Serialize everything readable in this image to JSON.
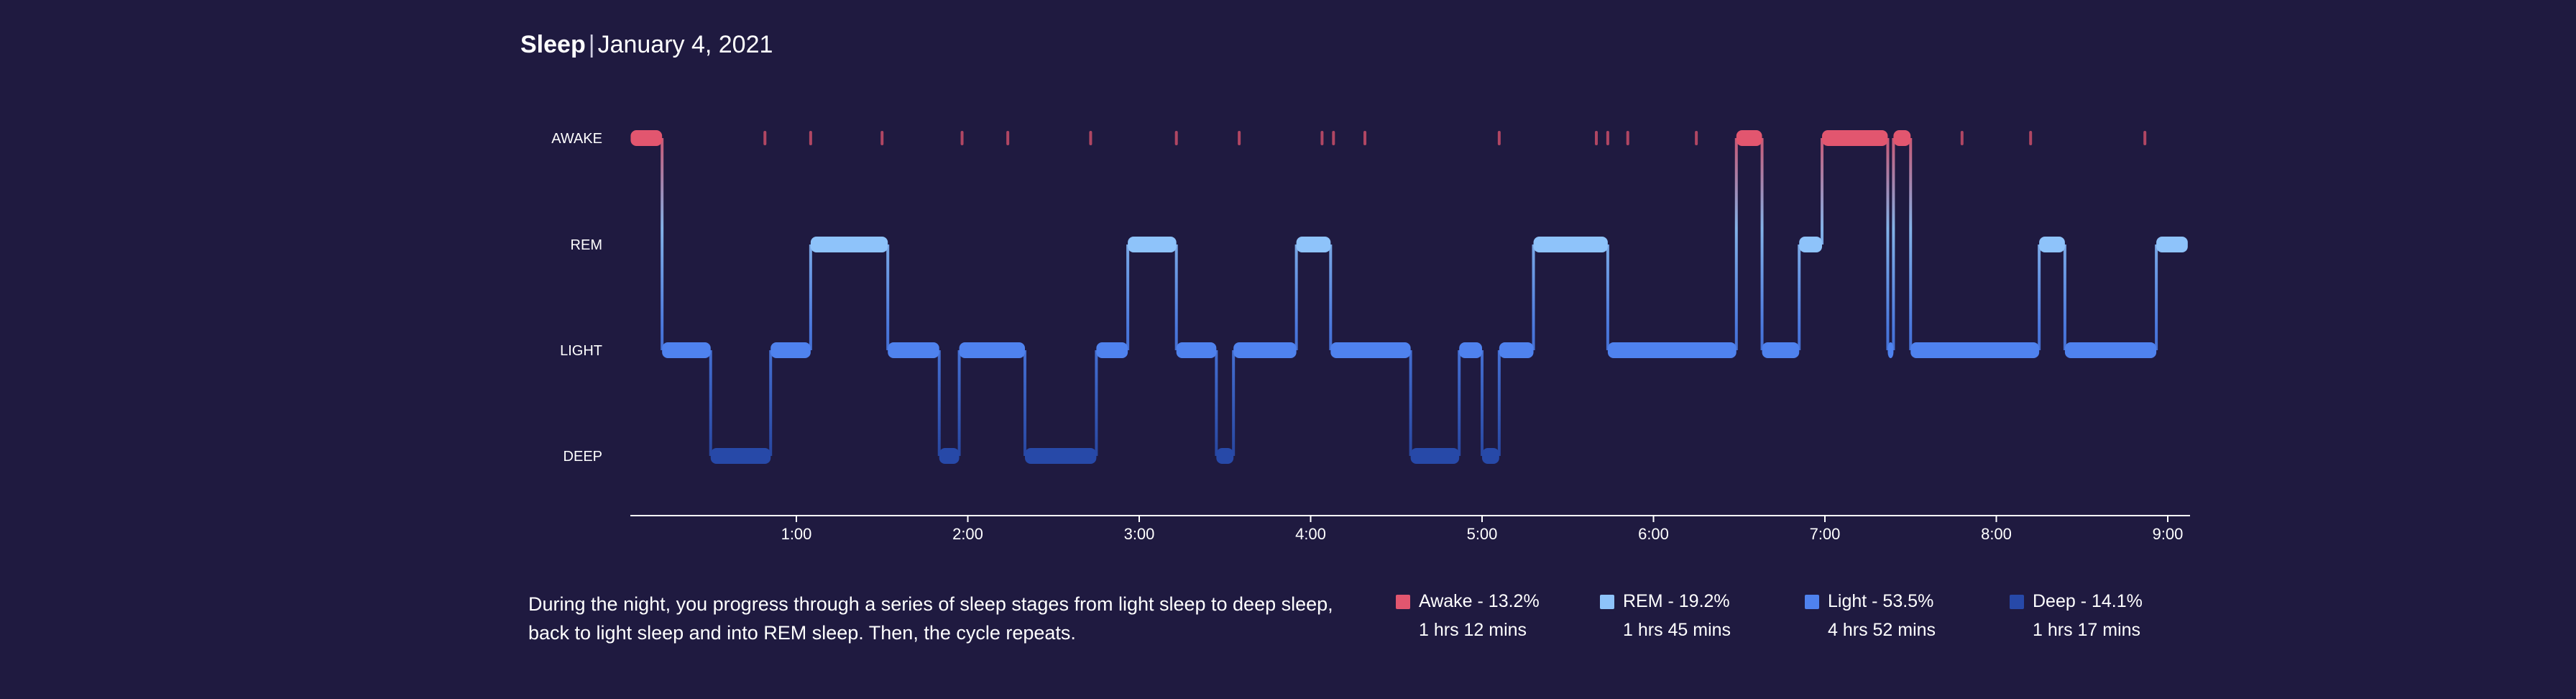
{
  "header": {
    "title": "Sleep",
    "separator": "|",
    "date": "January 4, 2021"
  },
  "colors": {
    "background": "#1f1a40",
    "awake": "#e2566f",
    "rem": "#8ec3fa",
    "light": "#4f82ee",
    "deep": "#2749a8"
  },
  "chart_data": {
    "type": "area",
    "title": "Sleep",
    "xlabel": "",
    "ylabel": "",
    "grid": false,
    "stages": [
      "AWAKE",
      "REM",
      "LIGHT",
      "DEEP"
    ],
    "xlim": [
      "0:02",
      "9:07"
    ],
    "x_ticks": [
      "1:00",
      "2:00",
      "3:00",
      "4:00",
      "5:00",
      "6:00",
      "7:00",
      "8:00",
      "9:00"
    ],
    "segments": [
      {
        "stage": "AWAKE",
        "start": "0:02",
        "end": "0:13"
      },
      {
        "stage": "LIGHT",
        "start": "0:13",
        "end": "0:30"
      },
      {
        "stage": "DEEP",
        "start": "0:30",
        "end": "0:51"
      },
      {
        "stage": "LIGHT",
        "start": "0:51",
        "end": "1:05"
      },
      {
        "stage": "REM",
        "start": "1:05",
        "end": "1:32"
      },
      {
        "stage": "LIGHT",
        "start": "1:32",
        "end": "1:50"
      },
      {
        "stage": "DEEP",
        "start": "1:50",
        "end": "1:57"
      },
      {
        "stage": "LIGHT",
        "start": "1:57",
        "end": "2:20"
      },
      {
        "stage": "DEEP",
        "start": "2:20",
        "end": "2:45"
      },
      {
        "stage": "LIGHT",
        "start": "2:45",
        "end": "2:56"
      },
      {
        "stage": "REM",
        "start": "2:56",
        "end": "3:13"
      },
      {
        "stage": "LIGHT",
        "start": "3:13",
        "end": "3:27"
      },
      {
        "stage": "DEEP",
        "start": "3:27",
        "end": "3:33"
      },
      {
        "stage": "LIGHT",
        "start": "3:33",
        "end": "3:55"
      },
      {
        "stage": "REM",
        "start": "3:55",
        "end": "4:07"
      },
      {
        "stage": "LIGHT",
        "start": "4:07",
        "end": "4:35"
      },
      {
        "stage": "DEEP",
        "start": "4:35",
        "end": "4:52"
      },
      {
        "stage": "LIGHT",
        "start": "4:52",
        "end": "5:00"
      },
      {
        "stage": "DEEP",
        "start": "5:00",
        "end": "5:06"
      },
      {
        "stage": "LIGHT",
        "start": "5:06",
        "end": "5:18"
      },
      {
        "stage": "REM",
        "start": "5:18",
        "end": "5:44"
      },
      {
        "stage": "LIGHT",
        "start": "5:44",
        "end": "6:29"
      },
      {
        "stage": "AWAKE",
        "start": "6:29",
        "end": "6:38"
      },
      {
        "stage": "LIGHT",
        "start": "6:38",
        "end": "6:51"
      },
      {
        "stage": "REM",
        "start": "6:51",
        "end": "6:59"
      },
      {
        "stage": "AWAKE",
        "start": "6:59",
        "end": "7:22"
      },
      {
        "stage": "LIGHT",
        "start": "7:22",
        "end": "7:24"
      },
      {
        "stage": "AWAKE",
        "start": "7:24",
        "end": "7:30"
      },
      {
        "stage": "LIGHT",
        "start": "7:30",
        "end": "8:15"
      },
      {
        "stage": "REM",
        "start": "8:15",
        "end": "8:24"
      },
      {
        "stage": "LIGHT",
        "start": "8:24",
        "end": "8:56"
      },
      {
        "stage": "REM",
        "start": "8:56",
        "end": "9:07"
      }
    ],
    "brief_awakenings": [
      "0:49",
      "1:05",
      "1:30",
      "1:58",
      "2:14",
      "2:43",
      "3:13",
      "3:35",
      "4:04",
      "4:08",
      "4:19",
      "5:06",
      "5:40",
      "5:44",
      "5:51",
      "6:15",
      "7:48",
      "8:12",
      "8:52"
    ],
    "legend": [
      {
        "name": "Awake",
        "percent": "13.2%",
        "label": "Awake - 13.2%",
        "duration": "1 hrs 12 mins"
      },
      {
        "name": "REM",
        "percent": "19.2%",
        "label": "REM - 19.2%",
        "duration": "1 hrs 45 mins"
      },
      {
        "name": "Light",
        "percent": "53.5%",
        "label": "Light - 53.5%",
        "duration": "4 hrs 52 mins"
      },
      {
        "name": "Deep",
        "percent": "14.1%",
        "label": "Deep - 14.1%",
        "duration": "1 hrs 17 mins"
      }
    ],
    "legend_placement": "bottom-right"
  },
  "description": "During the night, you progress through a series of sleep stages from light sleep to deep sleep, back to light sleep and into REM sleep. Then, the cycle repeats."
}
